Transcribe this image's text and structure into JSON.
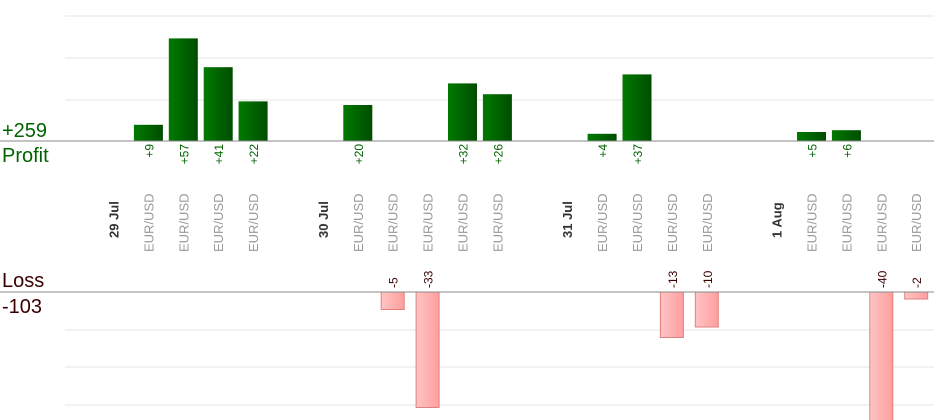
{
  "summary": {
    "profit_total": "+259",
    "profit_label": "Profit",
    "loss_label": "Loss",
    "loss_total": "-103"
  },
  "colors": {
    "profit": "#006400",
    "profit_text": "#006400",
    "loss_fill": "#ffb3b3",
    "loss_stroke": "#e08080",
    "loss_text": "#3a0000",
    "axis_text": "#999999",
    "date_text": "#333333",
    "grid": "#e6e6e6",
    "baseline": "#888888"
  },
  "chart_data": {
    "type": "bar",
    "profit_scale": 18,
    "loss_scale": 3.5,
    "columns": [
      {
        "label": "29 Jul",
        "kind": "date"
      },
      {
        "label": "EUR/USD",
        "kind": "trade",
        "value": 9
      },
      {
        "label": "EUR/USD",
        "kind": "trade",
        "value": 57
      },
      {
        "label": "EUR/USD",
        "kind": "trade",
        "value": 41
      },
      {
        "label": "EUR/USD",
        "kind": "trade",
        "value": 22
      },
      {
        "label": "",
        "kind": "gap"
      },
      {
        "label": "30 Jul",
        "kind": "date"
      },
      {
        "label": "EUR/USD",
        "kind": "trade",
        "value": 20
      },
      {
        "label": "EUR/USD",
        "kind": "trade",
        "value": -5
      },
      {
        "label": "EUR/USD",
        "kind": "trade",
        "value": -33
      },
      {
        "label": "EUR/USD",
        "kind": "trade",
        "value": 32
      },
      {
        "label": "EUR/USD",
        "kind": "trade",
        "value": 26
      },
      {
        "label": "",
        "kind": "gap"
      },
      {
        "label": "31 Jul",
        "kind": "date"
      },
      {
        "label": "EUR/USD",
        "kind": "trade",
        "value": 4
      },
      {
        "label": "EUR/USD",
        "kind": "trade",
        "value": 37
      },
      {
        "label": "EUR/USD",
        "kind": "trade",
        "value": -13
      },
      {
        "label": "EUR/USD",
        "kind": "trade",
        "value": -10
      },
      {
        "label": "",
        "kind": "gap"
      },
      {
        "label": "1 Aug",
        "kind": "date"
      },
      {
        "label": "EUR/USD",
        "kind": "trade",
        "value": 5
      },
      {
        "label": "EUR/USD",
        "kind": "trade",
        "value": 6
      },
      {
        "label": "EUR/USD",
        "kind": "trade",
        "value": -40
      },
      {
        "label": "EUR/USD",
        "kind": "trade",
        "value": -2
      }
    ]
  }
}
